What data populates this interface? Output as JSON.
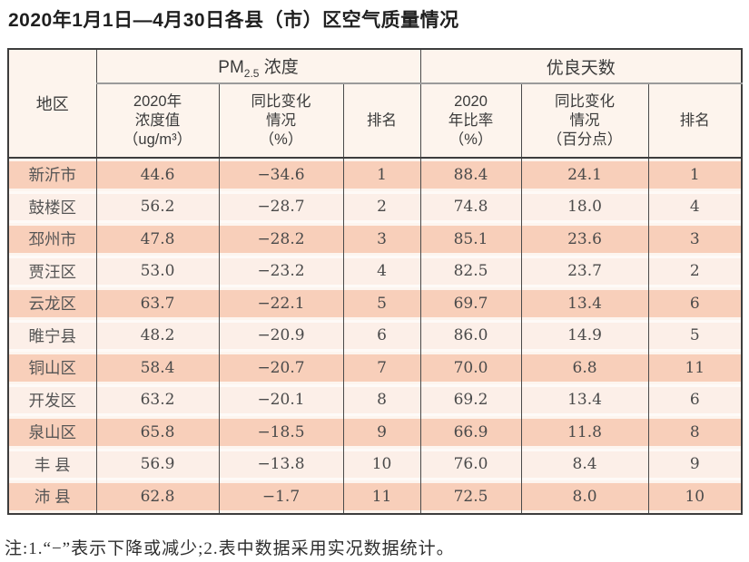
{
  "title": "2020年1月1日—4月30日各县（市）区空气质量情况",
  "table": {
    "header": {
      "region": "地区",
      "pm_group": {
        "prefix": "PM",
        "sub": "2.5",
        "suffix": " 浓度"
      },
      "gd_group": "优良天数",
      "cols": {
        "pm_value": "2020年\n浓度值\n（ug/m³）",
        "pm_change": "同比变化\n情况\n（%）",
        "pm_rank": "排名",
        "gd_ratio": "2020\n年比率\n（%）",
        "gd_change": "同比变化\n情况\n（百分点）",
        "gd_rank": "排名"
      }
    },
    "rows": [
      [
        "新沂市",
        "44.6",
        "−34.6",
        "1",
        "88.4",
        "24.1",
        "1"
      ],
      [
        "鼓楼区",
        "56.2",
        "−28.7",
        "2",
        "74.8",
        "18.0",
        "4"
      ],
      [
        "邳州市",
        "47.8",
        "−28.2",
        "3",
        "85.1",
        "23.6",
        "3"
      ],
      [
        "贾汪区",
        "53.0",
        "−23.2",
        "4",
        "82.5",
        "23.7",
        "2"
      ],
      [
        "云龙区",
        "63.7",
        "−22.1",
        "5",
        "69.7",
        "13.4",
        "6"
      ],
      [
        "睢宁县",
        "48.2",
        "−20.9",
        "6",
        "86.0",
        "14.9",
        "5"
      ],
      [
        "铜山区",
        "58.4",
        "−20.7",
        "7",
        "70.0",
        "6.8",
        "11"
      ],
      [
        "开发区",
        "63.2",
        "−20.1",
        "8",
        "69.2",
        "13.4",
        "6"
      ],
      [
        "泉山区",
        "65.8",
        "−18.5",
        "9",
        "66.9",
        "11.8",
        "8"
      ],
      [
        "丰 县",
        "56.9",
        "−13.8",
        "10",
        "76.0",
        "8.4",
        "9"
      ],
      [
        "沛 县",
        "62.8",
        "−1.7",
        "11",
        "72.5",
        "8.0",
        "10"
      ]
    ],
    "colors": {
      "row_pink": "#f8cfba",
      "row_light": "#fcefe8",
      "header_bg": "#fdf4ed",
      "border_dark": "#3d3d3d",
      "group_divider_gray": "#9a9a9a"
    }
  },
  "note": "注:1.“−”表示下降或减少;2.表中数据采用实况数据统计。"
}
